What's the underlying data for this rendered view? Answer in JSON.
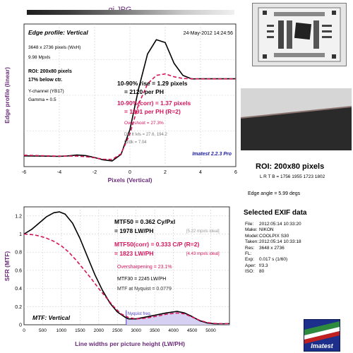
{
  "file_title": "gj.JPG",
  "roi_panel": {
    "title": "ROI: 200x80 pixels",
    "coords": "L R T B = 1756 1955  1723 1802",
    "edge_angle": "Edge angle = 5.99 degs"
  },
  "exif": {
    "title": "Selected EXIF data",
    "rows": [
      {
        "k": "File:",
        "v": "2012:05:14 10:33:20"
      },
      {
        "k": "Make:",
        "v": "NIKON"
      },
      {
        "k": "Model:",
        "v": "COOLPIX S30"
      },
      {
        "k": "Taken:",
        "v": "2012:05:14 10:33:18"
      },
      {
        "k": "Res:",
        "v": "3648 x 2736"
      },
      {
        "k": "FL:",
        "v": ""
      },
      {
        "k": "Exp:",
        "v": "0.017 s  (1/60)"
      },
      {
        "k": "Aper:",
        "v": "f/3.3"
      },
      {
        "k": "ISO:",
        "v": "80"
      }
    ]
  },
  "logo": {
    "text": "Imatest"
  },
  "colors": {
    "primary": "#000000",
    "corrected": "#d4145a",
    "text_purple": "#6a2c7a",
    "accent_blue": "#1a1aaa",
    "nyquist_fill": "#d6d0f2"
  },
  "chart_data": [
    {
      "type": "line",
      "title": "Edge profile: Vertical",
      "timestamp": "24-May-2012 14:24:56",
      "xlabel": "Pixels (Vertical)",
      "ylabel": "Edge profile (linear)",
      "xlim": [
        -6,
        6
      ],
      "ylim": [
        0,
        1.0
      ],
      "xticks": [
        "-6",
        "-4",
        "-2",
        "0",
        "2",
        "4",
        "6"
      ],
      "grid": true,
      "image_info": [
        "3648 x 2736 pixels (WxH)",
        "9.98 Mpxls"
      ],
      "roi_info": [
        "ROI: 200x80 pixels",
        "17% below ctr."
      ],
      "channel_info": [
        "Y-channel  (YB17)",
        "Gamma = 0.5"
      ],
      "results": {
        "rise_line1": "10-90% rise = 1.29 pixels",
        "rise_line2": "= 2120 per PH",
        "corr_line1": "10-90%(corr) = 1.37 pixels",
        "corr_line2": "= 1991 per PH  (R=2)",
        "overshoot": "Overshoot = 27.3%",
        "dk_lt": "Dk, lt lvls = 27.6, 194.2",
        "lt_dk": "Lt/dk = 7.04"
      },
      "version_label": "Imatest 2.2.3 Pro",
      "series": [
        {
          "values": [
            [
              -6,
              0.075
            ],
            [
              -5,
              0.074
            ],
            [
              -4,
              0.072
            ],
            [
              -3.5,
              0.075
            ],
            [
              -3,
              0.081
            ],
            [
              -2.5,
              0.077
            ],
            [
              -2,
              0.064
            ],
            [
              -1.5,
              0.047
            ],
            [
              -1,
              0.04
            ],
            [
              -0.5,
              0.086
            ],
            [
              0,
              0.26
            ],
            [
              0.5,
              0.55
            ],
            [
              1,
              0.79
            ],
            [
              1.5,
              0.89
            ],
            [
              2,
              0.87
            ],
            [
              2.5,
              0.725
            ],
            [
              3,
              0.64
            ],
            [
              3.5,
              0.615
            ],
            [
              4,
              0.616
            ],
            [
              5,
              0.616
            ],
            [
              6,
              0.616
            ]
          ]
        },
        {
          "values": [
            [
              -6,
              0.08
            ],
            [
              -5,
              0.076
            ],
            [
              -4,
              0.074
            ],
            [
              -3,
              0.074
            ],
            [
              -2.5,
              0.07
            ],
            [
              -2,
              0.062
            ],
            [
              -1.5,
              0.052
            ],
            [
              -1,
              0.05
            ],
            [
              -0.5,
              0.09
            ],
            [
              0,
              0.23
            ],
            [
              0.5,
              0.44
            ],
            [
              1,
              0.58
            ],
            [
              1.5,
              0.64
            ],
            [
              2,
              0.65
            ],
            [
              2.5,
              0.63
            ],
            [
              3,
              0.618
            ],
            [
              4,
              0.615
            ],
            [
              5,
              0.615
            ],
            [
              6,
              0.615
            ]
          ]
        }
      ]
    },
    {
      "type": "line",
      "title": "MTF: Vertical",
      "xlabel": "Line widths per picture height (LW/PH)",
      "ylabel": "SFR (MTF)",
      "xlim": [
        0,
        5500
      ],
      "ylim": [
        0,
        1.3
      ],
      "xticks": [
        "0",
        "500",
        "1000",
        "1500",
        "2000",
        "2500",
        "3000",
        "3500",
        "4000",
        "4500",
        "5000"
      ],
      "yticks": [
        "0",
        "0.2",
        "0.4",
        "0.6",
        "0.8",
        "1",
        "1.2"
      ],
      "grid": true,
      "nyquist_label": "Nyquist freq.",
      "nyquist_x": 2736,
      "results": {
        "mtf50": "MTF50 = 0.362 Cy/Pxl",
        "mtf50_lw": "= 1978 LW/PH",
        "mtf50_ideal": "[5.22 mpxls ideal]",
        "mtf50c": "MTF50(corr) = 0.333 C/P  (R=2)",
        "mtf50c_lw": "= 1823 LW/PH",
        "mtf50c_ideal": "[4.43 mpxls ideal]",
        "oversharpening": "Oversharpening = 23.1%",
        "mtf30": "MTF30 = 2245 LW/PH",
        "nyquist_mtf": "MTF at Nyquist = 0.0779"
      },
      "series": [
        {
          "values": [
            [
              0,
              1.0
            ],
            [
              200,
              1.05
            ],
            [
              400,
              1.12
            ],
            [
              600,
              1.19
            ],
            [
              800,
              1.235
            ],
            [
              950,
              1.245
            ],
            [
              1100,
              1.22
            ],
            [
              1300,
              1.12
            ],
            [
              1500,
              0.95
            ],
            [
              1700,
              0.75
            ],
            [
              1900,
              0.55
            ],
            [
              2100,
              0.38
            ],
            [
              2300,
              0.24
            ],
            [
              2500,
              0.14
            ],
            [
              2700,
              0.085
            ],
            [
              2800,
              0.065
            ],
            [
              3000,
              0.065
            ],
            [
              3200,
              0.08
            ],
            [
              3500,
              0.105
            ],
            [
              3800,
              0.13
            ],
            [
              4100,
              0.148
            ],
            [
              4300,
              0.13
            ],
            [
              4500,
              0.09
            ],
            [
              4700,
              0.045
            ],
            [
              4900,
              0.02
            ],
            [
              5100,
              0.01
            ],
            [
              5300,
              0.01
            ],
            [
              5500,
              0.012
            ]
          ]
        },
        {
          "values": [
            [
              0,
              1.0
            ],
            [
              200,
              0.995
            ],
            [
              400,
              0.98
            ],
            [
              600,
              0.955
            ],
            [
              800,
              0.92
            ],
            [
              1000,
              0.87
            ],
            [
              1200,
              0.8
            ],
            [
              1400,
              0.71
            ],
            [
              1600,
              0.61
            ],
            [
              1800,
              0.51
            ],
            [
              2000,
              0.4
            ],
            [
              2200,
              0.3
            ],
            [
              2400,
              0.2
            ],
            [
              2600,
              0.12
            ],
            [
              2800,
              0.08
            ],
            [
              3000,
              0.065
            ],
            [
              3200,
              0.07
            ],
            [
              3500,
              0.09
            ],
            [
              3800,
              0.115
            ],
            [
              4100,
              0.13
            ],
            [
              4300,
              0.12
            ],
            [
              4500,
              0.085
            ],
            [
              4700,
              0.05
            ],
            [
              4900,
              0.025
            ],
            [
              5100,
              0.015
            ],
            [
              5300,
              0.012
            ],
            [
              5500,
              0.012
            ]
          ]
        }
      ]
    }
  ]
}
